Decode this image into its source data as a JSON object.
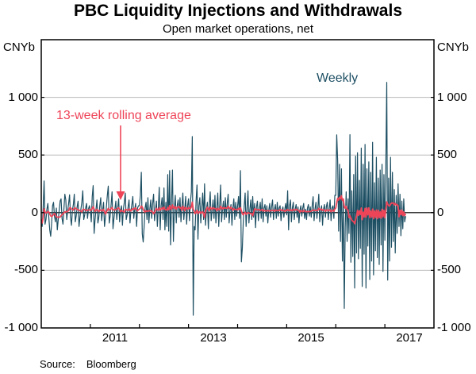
{
  "title": "PBC Liquidity Injections and Withdrawals",
  "subtitle": "Open market operations, net",
  "source": {
    "label": "Source:",
    "value": "Bloomberg"
  },
  "annotations": {
    "weekly_label": "Weekly",
    "rolling_label": "13-week rolling average"
  },
  "colors": {
    "weekly": "#1d4f63",
    "rolling": "#ee4458",
    "grid": "#b9b9b9",
    "zero": "#3d3d3d",
    "frame": "#000000"
  },
  "axes": {
    "unit_left": "CNYb",
    "unit_right": "CNYb",
    "y_tick_labels": [
      "1 000",
      "500",
      "0",
      "-500",
      "-1 000"
    ],
    "y_tick_values": [
      1000,
      500,
      0,
      -500,
      -1000
    ],
    "grid_values": [
      1000,
      500,
      -500
    ],
    "x_tick_years": [
      2011,
      2012,
      2013,
      2014,
      2015,
      2016,
      2017
    ],
    "x_labels": [
      "2011",
      "2013",
      "2015",
      "2017"
    ],
    "x_label_center_years": [
      2011.5,
      2013.5,
      2015.5,
      2017.5
    ],
    "xlim": [
      2010,
      2018
    ],
    "ylim": [
      -1000,
      1500
    ]
  },
  "chart_data": {
    "type": "line",
    "title": "PBC Liquidity Injections and Withdrawals",
    "subtitle": "Open market operations, net",
    "ylabel": "CNYb",
    "xlim": [
      2010,
      2018
    ],
    "ylim": [
      -1000,
      1500
    ],
    "grid": "horizontal gridlines at 1000, 500, -500; dark zero line",
    "legend_position": "inline-annotations",
    "series": [
      {
        "name": "Weekly",
        "color_key": "weekly",
        "start_year": 2010.0,
        "step_years": 0.0192308,
        "values": [
          -60,
          -120,
          40,
          275,
          -100,
          -60,
          30,
          80,
          -40,
          -150,
          -205,
          -90,
          60,
          90,
          -30,
          -80,
          40,
          -150,
          -60,
          20,
          100,
          120,
          -50,
          -100,
          30,
          160,
          110,
          -60,
          20,
          80,
          155,
          -40,
          -110,
          20,
          70,
          160,
          -80,
          -30,
          50,
          100,
          -120,
          -40,
          30,
          90,
          190,
          -60,
          -20,
          40,
          80,
          -50,
          30,
          60,
          20,
          -80,
          140,
          235,
          -180,
          -60,
          30,
          110,
          -90,
          -40,
          60,
          130,
          -70,
          20,
          90,
          -120,
          -40,
          50,
          150,
          230,
          -90,
          -30,
          70,
          180,
          -140,
          -50,
          30,
          100,
          -60,
          40,
          120,
          -80,
          20,
          60,
          -110,
          30,
          90,
          170,
          -60,
          -20,
          50,
          110,
          -90,
          20,
          70,
          140,
          -50,
          30,
          80,
          -120,
          40,
          60,
          60,
          150,
          350,
          -185,
          -255,
          -120,
          40,
          90,
          -60,
          130,
          -90,
          30,
          110,
          -50,
          80,
          160,
          -70,
          20,
          100,
          -120,
          40,
          220,
          -150,
          60,
          130,
          -60,
          214,
          -150,
          90,
          -120,
          330,
          -160,
          365,
          -280,
          90,
          370,
          -250,
          40,
          150,
          -90,
          60,
          110,
          -40,
          130,
          -80,
          50,
          170,
          -60,
          30,
          140,
          -100,
          60,
          120,
          -70,
          90,
          180,
          660,
          -890,
          -120,
          -150,
          100,
          240,
          -230,
          60,
          130,
          -90,
          40,
          170,
          -60,
          250,
          -110,
          30,
          90,
          -140,
          60,
          180,
          -70,
          20,
          110,
          -50,
          150,
          -90,
          40,
          170,
          -120,
          60,
          240,
          -80,
          30,
          100,
          -60,
          130,
          -40,
          80,
          160,
          -90,
          20,
          70,
          -110,
          40,
          120,
          -60,
          90,
          -30,
          60,
          140,
          -50,
          365,
          -427,
          -310,
          -80,
          60,
          170,
          -120,
          40,
          190,
          -90,
          30,
          110,
          -60,
          140,
          -40,
          80,
          -130,
          50,
          100,
          -70,
          30,
          90,
          -50,
          120,
          -80,
          40,
          70,
          -30,
          60,
          -90,
          20,
          80,
          -40,
          50,
          110,
          -60,
          30,
          70,
          -50,
          90,
          -30,
          40,
          60,
          -70,
          20,
          50,
          -40,
          30,
          80,
          -20,
          190,
          -150,
          60,
          110,
          -80,
          40,
          90,
          -60,
          30,
          70,
          -40,
          50,
          -90,
          20,
          60,
          -30,
          40,
          80,
          -50,
          30,
          -60,
          40,
          70,
          -30,
          50,
          -40,
          60,
          138,
          -70,
          30,
          90,
          -50,
          40,
          160,
          -80,
          20,
          60,
          -110,
          30,
          70,
          -40,
          50,
          90,
          -60,
          30,
          110,
          -70,
          40,
          60,
          -50,
          150,
          150,
          675,
          450,
          -160,
          420,
          -250,
          380,
          -420,
          100,
          -830,
          -120,
          180,
          -250,
          120,
          -180,
          676,
          -430,
          190,
          -380,
          331,
          -654,
          490,
          -350,
          520,
          -400,
          280,
          -310,
          560,
          -640,
          420,
          -360,
          592,
          -654,
          380,
          -290,
          440,
          -580,
          350,
          -420,
          610,
          -540,
          260,
          -330,
          480,
          -390,
          300,
          -450,
          370,
          -280,
          420,
          -510,
          330,
          -240,
          390,
          1130,
          -585,
          300,
          -420,
          480,
          -300,
          350,
          -250,
          200,
          -350,
          150,
          -180,
          250,
          -120,
          160,
          -200,
          100,
          -140,
          120,
          -80,
          -30
        ]
      },
      {
        "name": "13-week rolling average",
        "color_key": "rolling",
        "derived": "rolling_mean_of_series_0",
        "window": 13
      }
    ]
  }
}
